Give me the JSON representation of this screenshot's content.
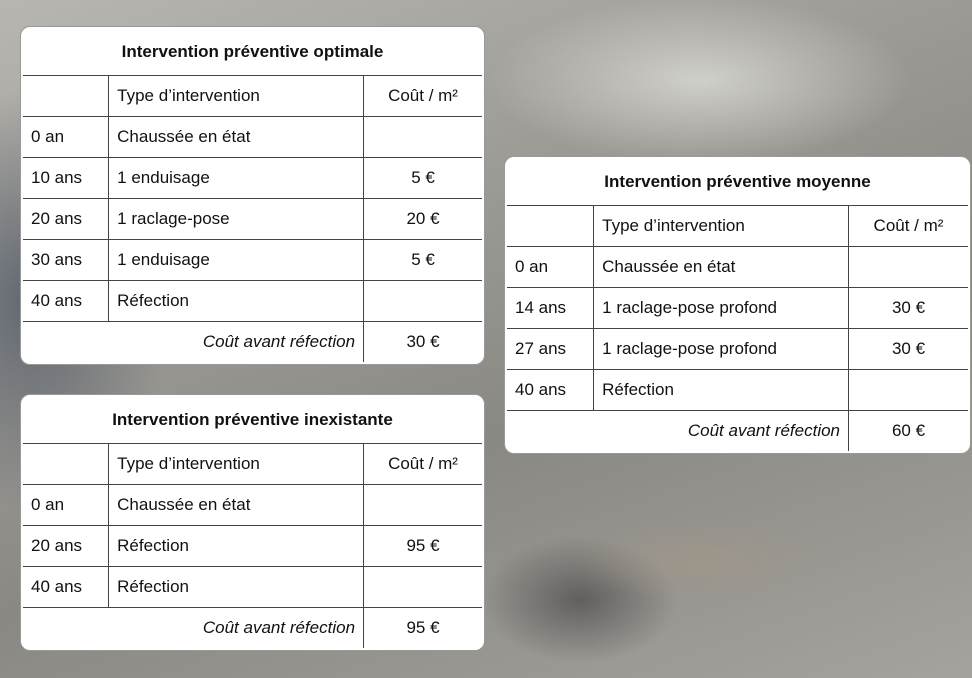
{
  "tables": [
    {
      "title": "Intervention préventive optimale",
      "header": {
        "type": "Type d’intervention",
        "cost": "Coût / m²"
      },
      "rows": [
        {
          "time": "0 an",
          "type": "Chaussée en état"
        },
        {
          "time": "10 ans",
          "type": "1 enduisage",
          "cost": "5 €"
        },
        {
          "time": "20 ans",
          "type": "1 raclage-pose",
          "cost": "20 €"
        },
        {
          "time": "30 ans",
          "type": "1 enduisage",
          "cost": "5 €"
        },
        {
          "time": "40 ans",
          "type": "Réfection"
        }
      ],
      "footer": {
        "label": "Coût avant réfection",
        "cost": "30 €"
      }
    },
    {
      "title": "Intervention préventive moyenne",
      "header": {
        "type": "Type d’intervention",
        "cost": "Coût / m²"
      },
      "rows": [
        {
          "time": "0 an",
          "type": "Chaussée en état"
        },
        {
          "time": "14 ans",
          "type": "1 raclage-pose profond",
          "cost": "30 €"
        },
        {
          "time": "27 ans",
          "type": "1 raclage-pose profond",
          "cost": "30 €"
        },
        {
          "time": "40 ans",
          "type": "Réfection"
        }
      ],
      "footer": {
        "label": "Coût avant réfection",
        "cost": "60 €"
      }
    },
    {
      "title": "Intervention préventive inexistante",
      "header": {
        "type": "Type d’intervention",
        "cost": "Coût / m²"
      },
      "rows": [
        {
          "time": "0 an",
          "type": "Chaussée en état"
        },
        {
          "time": "20 ans",
          "type": "Réfection",
          "cost": "95 €"
        },
        {
          "time": "40 ans",
          "type": "Réfection"
        }
      ],
      "footer": {
        "label": "Coût avant réfection",
        "cost": "95 €"
      }
    }
  ]
}
